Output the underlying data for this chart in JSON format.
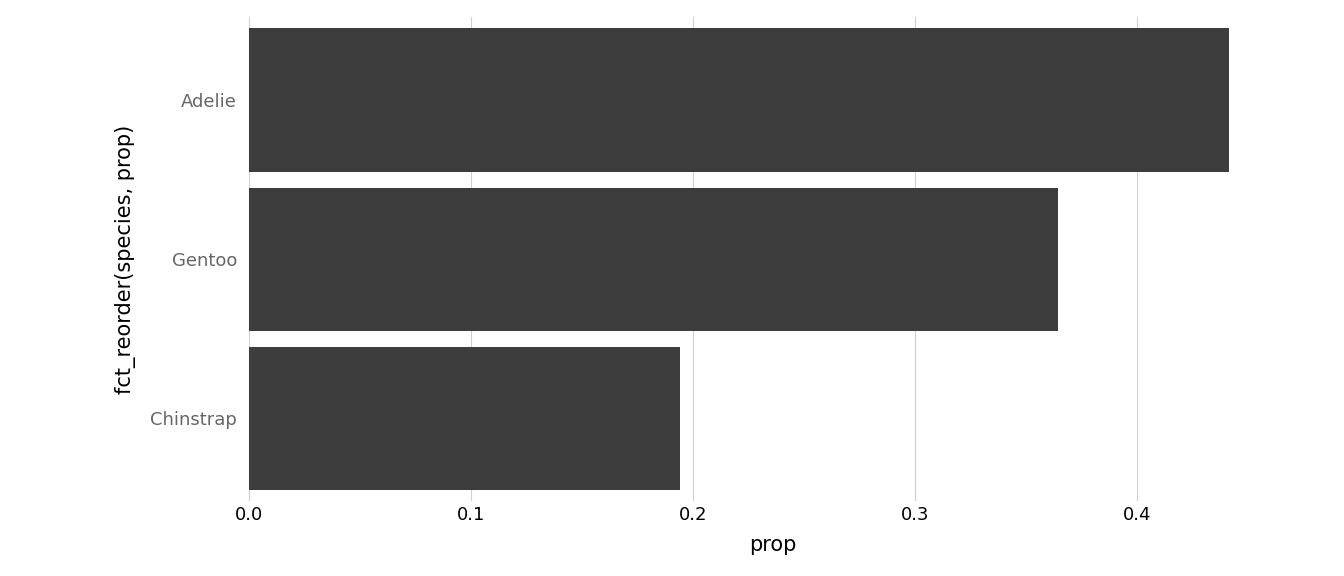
{
  "species": [
    "Adelie",
    "Gentoo",
    "Chinstrap"
  ],
  "props": [
    0.4415205,
    0.3644068,
    0.1940727
  ],
  "bar_color": "#3d3d3d",
  "background_color": "#ffffff",
  "panel_background": "#ffffff",
  "grid_color": "#d0d0d0",
  "xlabel": "prop",
  "ylabel": "fct_reorder(species, prop)",
  "xlim": [
    -0.003,
    0.475
  ],
  "xticks": [
    0.0,
    0.1,
    0.2,
    0.3,
    0.4
  ],
  "axis_label_fontsize": 15,
  "tick_fontsize": 13,
  "bar_height": 0.9,
  "ytick_color": "#666666"
}
